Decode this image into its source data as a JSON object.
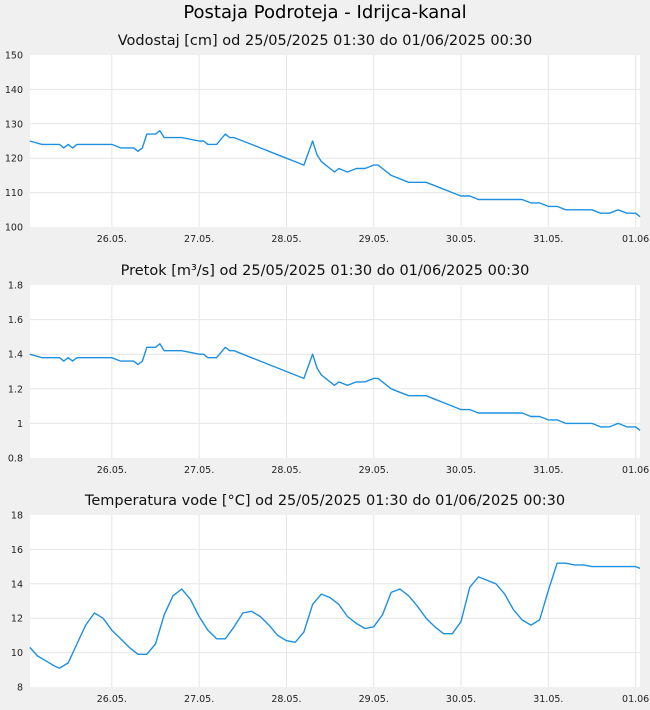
{
  "title": "Postaja Podroteja - Idrijca-kanal",
  "colors": {
    "background": "#f0f0f0",
    "plot_background": "#ffffff",
    "grid": "#e6e6e6",
    "line": "#1e90e0"
  },
  "chart_data": [
    {
      "type": "line",
      "title": "Vodostaj [cm] od 25/05/2025 01:30 do 01/06/2025 00:30",
      "xlabel": "",
      "ylabel": "",
      "ylim": [
        100,
        150
      ],
      "yticks": [
        "100",
        "110",
        "120",
        "130",
        "140",
        "150"
      ],
      "xlim_days": [
        25.0625,
        32.05
      ],
      "xtick_labels": [
        "26.05.",
        "27.05.",
        "28.05.",
        "29.05.",
        "30.05.",
        "31.05.",
        "01.06"
      ],
      "grid": true,
      "series": [
        {
          "x_days": [
            25.06,
            25.2,
            25.3,
            25.4,
            25.45,
            25.5,
            25.55,
            25.6,
            25.7,
            25.8,
            25.9,
            26.0,
            26.1,
            26.2,
            26.25,
            26.3,
            26.35,
            26.4,
            26.5,
            26.55,
            26.6,
            26.65,
            26.7,
            26.8,
            27.0,
            27.05,
            27.1,
            27.2,
            27.3,
            27.35,
            27.4,
            27.5,
            27.6,
            27.7,
            27.8,
            27.9,
            28.0,
            28.1,
            28.2,
            28.3,
            28.35,
            28.4,
            28.45,
            28.5,
            28.55,
            28.6,
            28.7,
            28.8,
            28.9,
            29.0,
            29.05,
            29.1,
            29.2,
            29.3,
            29.4,
            29.5,
            29.6,
            29.7,
            29.8,
            29.9,
            30.0,
            30.1,
            30.2,
            30.3,
            30.4,
            30.5,
            30.6,
            30.7,
            30.8,
            30.9,
            31.0,
            31.1,
            31.2,
            31.3,
            31.4,
            31.5,
            31.6,
            31.7,
            31.8,
            31.9,
            32.0,
            32.05
          ],
          "values": [
            125,
            124,
            124,
            124,
            123,
            124,
            123,
            124,
            124,
            124,
            124,
            124,
            123,
            123,
            123,
            122,
            123,
            127,
            127,
            128,
            126,
            126,
            126,
            126,
            125,
            125,
            124,
            124,
            127,
            126,
            126,
            125,
            124,
            123,
            122,
            121,
            120,
            119,
            118,
            125,
            121,
            119,
            118,
            117,
            116,
            117,
            116,
            117,
            117,
            118,
            118,
            117,
            115,
            114,
            113,
            113,
            113,
            112,
            111,
            110,
            109,
            109,
            108,
            108,
            108,
            108,
            108,
            108,
            107,
            107,
            106,
            106,
            105,
            105,
            105,
            105,
            104,
            104,
            105,
            104,
            104,
            103
          ]
        }
      ]
    },
    {
      "type": "line",
      "title": "Pretok [m³/s] od 25/05/2025 01:30 do 01/06/2025 00:30",
      "xlabel": "",
      "ylabel": "",
      "ylim": [
        0.8,
        1.8
      ],
      "yticks": [
        "0.8",
        "1",
        "1.2",
        "1.4",
        "1.6",
        "1.8"
      ],
      "xlim_days": [
        25.0625,
        32.05
      ],
      "xtick_labels": [
        "26.05.",
        "27.05.",
        "28.05.",
        "29.05.",
        "30.05.",
        "31.05.",
        "01.06"
      ],
      "grid": true,
      "series": [
        {
          "x_days": [
            25.06,
            25.2,
            25.3,
            25.4,
            25.45,
            25.5,
            25.55,
            25.6,
            25.7,
            25.8,
            25.9,
            26.0,
            26.1,
            26.2,
            26.25,
            26.3,
            26.35,
            26.4,
            26.5,
            26.55,
            26.6,
            26.65,
            26.7,
            26.8,
            27.0,
            27.05,
            27.1,
            27.2,
            27.3,
            27.35,
            27.4,
            27.5,
            27.6,
            27.7,
            27.8,
            27.9,
            28.0,
            28.1,
            28.2,
            28.3,
            28.35,
            28.4,
            28.45,
            28.5,
            28.55,
            28.6,
            28.7,
            28.8,
            28.9,
            29.0,
            29.05,
            29.1,
            29.2,
            29.3,
            29.4,
            29.5,
            29.6,
            29.7,
            29.8,
            29.9,
            30.0,
            30.1,
            30.2,
            30.3,
            30.4,
            30.5,
            30.6,
            30.7,
            30.8,
            30.9,
            31.0,
            31.1,
            31.2,
            31.3,
            31.4,
            31.5,
            31.6,
            31.7,
            31.8,
            31.9,
            32.0,
            32.05
          ],
          "values": [
            1.4,
            1.38,
            1.38,
            1.38,
            1.36,
            1.38,
            1.36,
            1.38,
            1.38,
            1.38,
            1.38,
            1.38,
            1.36,
            1.36,
            1.36,
            1.34,
            1.36,
            1.44,
            1.44,
            1.46,
            1.42,
            1.42,
            1.42,
            1.42,
            1.4,
            1.4,
            1.38,
            1.38,
            1.44,
            1.42,
            1.42,
            1.4,
            1.38,
            1.36,
            1.34,
            1.32,
            1.3,
            1.28,
            1.26,
            1.4,
            1.32,
            1.28,
            1.26,
            1.24,
            1.22,
            1.24,
            1.22,
            1.24,
            1.24,
            1.26,
            1.26,
            1.24,
            1.2,
            1.18,
            1.16,
            1.16,
            1.16,
            1.14,
            1.12,
            1.1,
            1.08,
            1.08,
            1.06,
            1.06,
            1.06,
            1.06,
            1.06,
            1.06,
            1.04,
            1.04,
            1.02,
            1.02,
            1.0,
            1.0,
            1.0,
            1.0,
            0.98,
            0.98,
            1.0,
            0.98,
            0.98,
            0.96
          ]
        }
      ]
    },
    {
      "type": "line",
      "title": "Temperatura vode [°C] od 25/05/2025 01:30 do 01/06/2025 00:30",
      "xlabel": "",
      "ylabel": "",
      "ylim": [
        8,
        18
      ],
      "yticks": [
        "8",
        "10",
        "12",
        "14",
        "16",
        "18"
      ],
      "xlim_days": [
        25.0625,
        32.05
      ],
      "xtick_labels": [
        "26.05.",
        "27.05.",
        "28.05.",
        "29.05.",
        "30.05.",
        "31.05.",
        "01.06"
      ],
      "grid": true,
      "series": [
        {
          "x_days": [
            25.06,
            25.15,
            25.25,
            25.35,
            25.4,
            25.5,
            25.6,
            25.7,
            25.8,
            25.9,
            26.0,
            26.1,
            26.2,
            26.3,
            26.4,
            26.5,
            26.6,
            26.7,
            26.8,
            26.9,
            27.0,
            27.1,
            27.2,
            27.3,
            27.4,
            27.5,
            27.6,
            27.7,
            27.8,
            27.9,
            28.0,
            28.1,
            28.2,
            28.3,
            28.4,
            28.5,
            28.6,
            28.7,
            28.8,
            28.9,
            29.0,
            29.1,
            29.2,
            29.3,
            29.4,
            29.5,
            29.6,
            29.7,
            29.8,
            29.9,
            30.0,
            30.1,
            30.2,
            30.3,
            30.4,
            30.5,
            30.6,
            30.7,
            30.8,
            30.9,
            31.0,
            31.1,
            31.2,
            31.3,
            31.4,
            31.5,
            31.6,
            31.7,
            31.8,
            31.9,
            32.0,
            32.05
          ],
          "values": [
            10.3,
            9.8,
            9.5,
            9.2,
            9.1,
            9.4,
            10.5,
            11.6,
            12.3,
            12.0,
            11.3,
            10.8,
            10.3,
            9.9,
            9.9,
            10.5,
            12.2,
            13.3,
            13.7,
            13.1,
            12.1,
            11.3,
            10.8,
            10.8,
            11.5,
            12.3,
            12.4,
            12.1,
            11.6,
            11.0,
            10.7,
            10.6,
            11.2,
            12.8,
            13.4,
            13.2,
            12.8,
            12.1,
            11.7,
            11.4,
            11.5,
            12.2,
            13.5,
            13.7,
            13.3,
            12.7,
            12.0,
            11.5,
            11.1,
            11.1,
            11.8,
            13.8,
            14.4,
            14.2,
            14.0,
            13.4,
            12.5,
            11.9,
            11.6,
            11.9,
            13.6,
            15.2,
            15.2,
            15.1,
            15.1,
            15.0,
            15.0,
            15.0,
            15.0,
            15.0,
            15.0,
            14.9
          ]
        }
      ]
    }
  ]
}
